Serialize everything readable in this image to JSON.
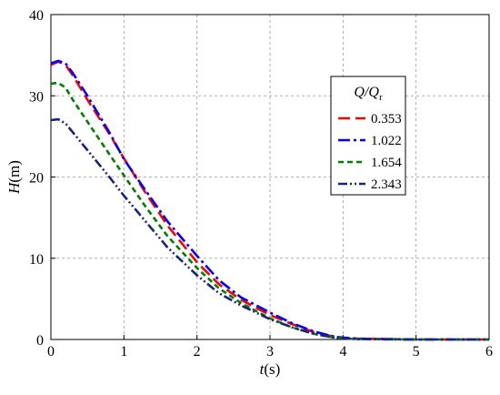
{
  "chart_data": {
    "type": "line",
    "xlabel_var": "t",
    "xlabel_unit": "(s)",
    "ylabel_var": "H",
    "ylabel_unit": "(m)",
    "xlim": [
      0,
      6
    ],
    "ylim": [
      0,
      40
    ],
    "x_ticks": [
      0,
      1,
      2,
      3,
      4,
      5,
      6
    ],
    "y_ticks": [
      0,
      10,
      20,
      30,
      40
    ],
    "grid": true,
    "legend": {
      "title_main": "Q/Q",
      "title_sub": "r",
      "placement": "right"
    },
    "series": [
      {
        "name": "0.353",
        "color": "#ff0000",
        "dash": "long-dash",
        "x": [
          0,
          0.1,
          0.2,
          0.3,
          0.5,
          0.8,
          1.0,
          1.3,
          1.6,
          2.0,
          2.3,
          2.6,
          3.0,
          3.3,
          3.6,
          3.9,
          4.2,
          5.0,
          6.0
        ],
        "y": [
          33.8,
          34.2,
          33.8,
          32.5,
          29.5,
          25.3,
          22.3,
          18.0,
          14.0,
          9.5,
          6.8,
          4.9,
          3.0,
          1.9,
          0.9,
          0.3,
          0.1,
          0.0,
          0.0
        ]
      },
      {
        "name": "1.022",
        "color": "#0000ff",
        "dash": "dash-dot",
        "x": [
          0,
          0.1,
          0.2,
          0.3,
          0.5,
          0.8,
          1.0,
          1.3,
          1.6,
          2.0,
          2.3,
          2.6,
          3.0,
          3.3,
          3.6,
          3.9,
          4.2,
          5.0,
          6.0
        ],
        "y": [
          34.0,
          34.3,
          34.0,
          32.8,
          30.0,
          25.5,
          22.2,
          18.3,
          14.5,
          10.3,
          7.3,
          5.2,
          3.3,
          2.0,
          1.0,
          0.3,
          0.1,
          0.0,
          0.0
        ]
      },
      {
        "name": "1.654",
        "color": "#008000",
        "dash": "short-dash",
        "x": [
          0,
          0.1,
          0.2,
          0.3,
          0.5,
          0.8,
          1.0,
          1.3,
          1.6,
          2.0,
          2.3,
          2.6,
          3.0,
          3.3,
          3.6,
          3.9,
          4.2,
          5.0,
          6.0
        ],
        "y": [
          31.5,
          31.6,
          31.0,
          29.5,
          26.8,
          22.8,
          20.2,
          16.3,
          12.7,
          8.8,
          6.3,
          4.5,
          2.6,
          1.5,
          0.7,
          0.2,
          0.05,
          0.0,
          0.0
        ]
      },
      {
        "name": "2.343",
        "color": "#1a237e",
        "dash": "dash-dot-dot",
        "x": [
          0,
          0.1,
          0.2,
          0.3,
          0.5,
          0.8,
          1.0,
          1.3,
          1.6,
          2.0,
          2.3,
          2.6,
          3.0,
          3.3,
          3.6,
          3.9,
          4.2,
          5.0,
          6.0
        ],
        "y": [
          27.0,
          27.1,
          26.6,
          25.5,
          23.3,
          20.0,
          17.7,
          14.5,
          11.3,
          7.9,
          5.7,
          4.2,
          2.5,
          1.5,
          0.7,
          0.2,
          0.05,
          0.0,
          0.0
        ]
      }
    ]
  }
}
